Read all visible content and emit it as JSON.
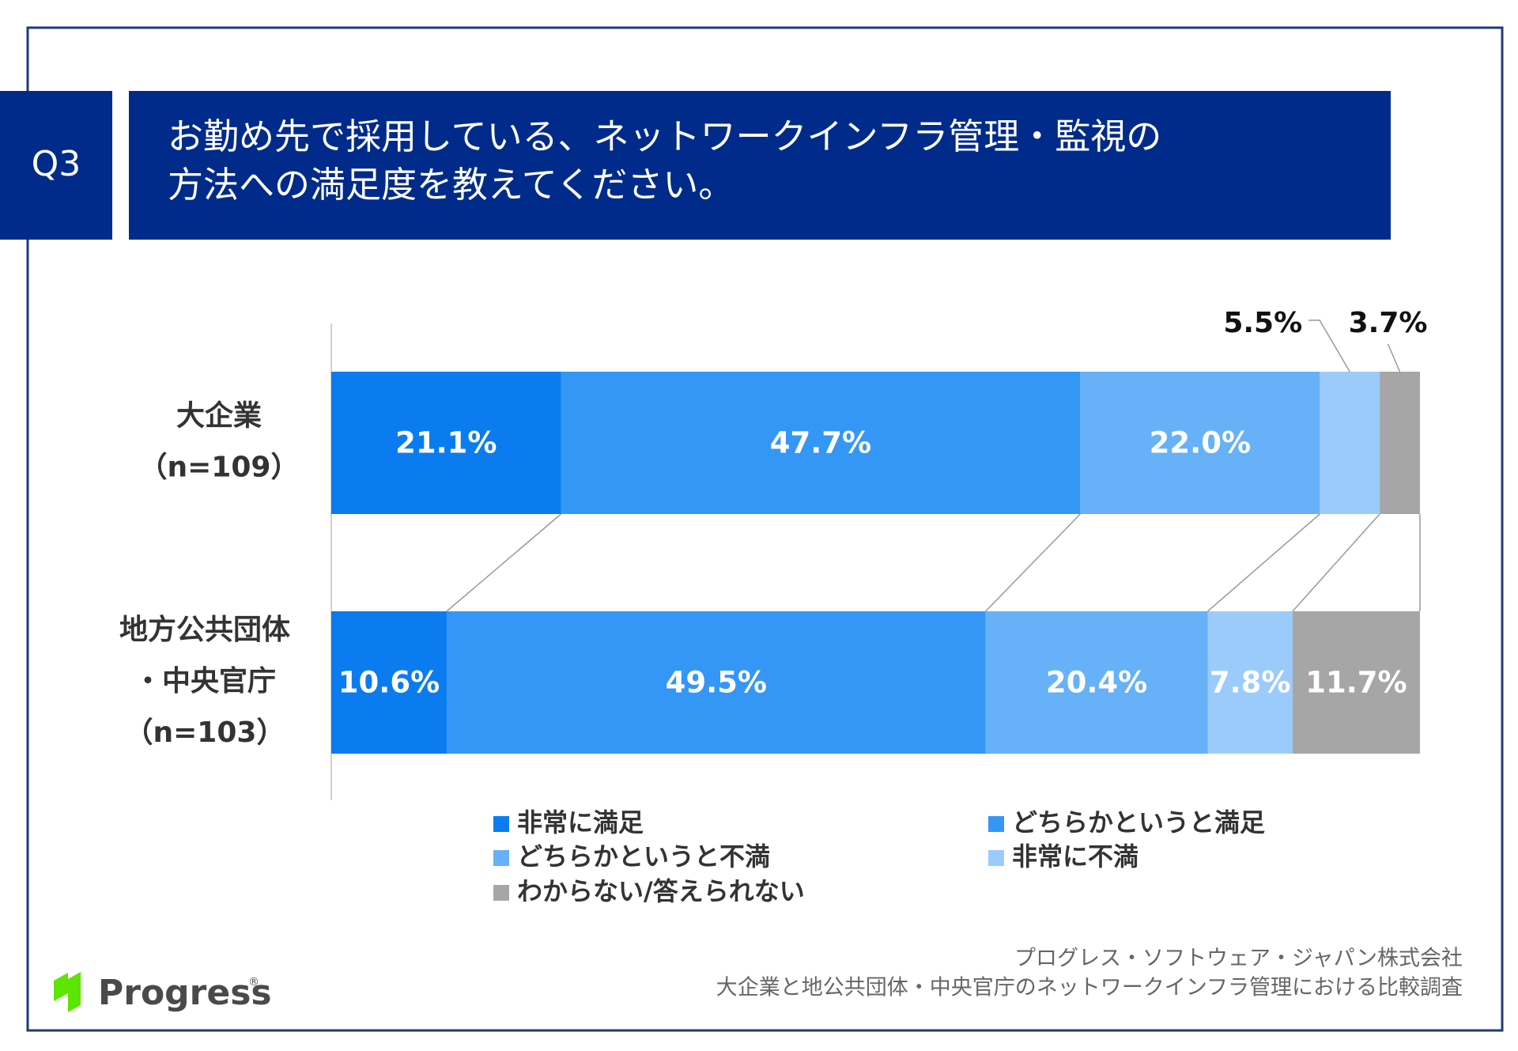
{
  "header": {
    "tag": "Q3",
    "title_lines": [
      "お勤め先で採用している、ネットワークインフラ管理・監視の",
      "方法への満足度を教えてください。"
    ]
  },
  "chart_data": {
    "type": "stacked-bar-horizontal",
    "categories": [
      [
        "大企業",
        "（n=109）"
      ],
      [
        "地方公共団体",
        "・中央官庁",
        "（n=103）"
      ]
    ],
    "xlim": [
      0,
      100
    ],
    "legend": "bottom",
    "series": [
      {
        "name": "非常に満足",
        "color": "#0a7cf0",
        "values": [
          21.1,
          10.6
        ],
        "value_labels": [
          "21.1%",
          "10.6%"
        ]
      },
      {
        "name": "どちらかというと満足",
        "color": "#3497f6",
        "values": [
          47.7,
          49.5
        ],
        "value_labels": [
          "47.7%",
          "49.5%"
        ]
      },
      {
        "name": "どちらかというと不満",
        "color": "#66b1f8",
        "values": [
          22.0,
          20.4
        ],
        "value_labels": [
          "22.0%",
          "20.4%"
        ]
      },
      {
        "name": "非常に不満",
        "color": "#9bcbfb",
        "values": [
          5.5,
          7.8
        ],
        "value_labels": [
          "5.5%",
          "7.8%"
        ]
      },
      {
        "name": "わからない/答えられない",
        "color": "#a6a6a6",
        "values": [
          3.7,
          11.7
        ],
        "value_labels": [
          "3.7%",
          "11.7%"
        ]
      }
    ]
  },
  "footer": {
    "lines": [
      "プログレス・ソフトウェア・ジャパン株式会社",
      "大企業と地公共団体・中央官庁のネットワークインフラ管理における比較調査"
    ]
  },
  "logo": {
    "text": "Progress",
    "mark": "®"
  }
}
